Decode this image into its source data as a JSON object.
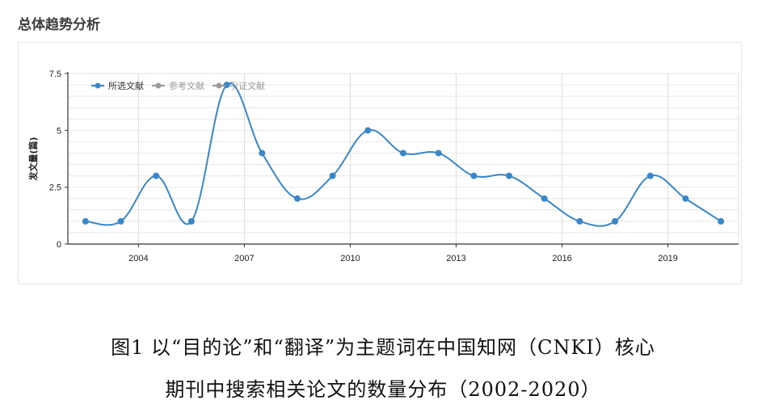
{
  "section_title": "总体趋势分析",
  "chart_data": {
    "type": "line",
    "ylabel": "发文量(篇)",
    "x": [
      2002,
      2003,
      2004,
      2005,
      2006,
      2007,
      2008,
      2009,
      2010,
      2011,
      2012,
      2013,
      2014,
      2015,
      2016,
      2017,
      2018,
      2019,
      2020
    ],
    "x_tick_labels": [
      "2004",
      "2007",
      "2010",
      "2013",
      "2016",
      "2019"
    ],
    "y_tick_labels": [
      "0",
      "2.5",
      "5",
      "7.5"
    ],
    "ylim": [
      0,
      7.5
    ],
    "grid": true,
    "legend_position": "top-left",
    "legend": [
      {
        "label": "所选文献",
        "color": "#3a87c8",
        "active": true
      },
      {
        "label": "参考文献",
        "color": "#9a9a9a",
        "active": false
      },
      {
        "label": "引证文献",
        "color": "#9a9a9a",
        "active": false
      }
    ],
    "series": [
      {
        "name": "所选文献",
        "color": "#3a87c8",
        "values": [
          1,
          1,
          3,
          1,
          7,
          4,
          2,
          3,
          5,
          4,
          4,
          3,
          3,
          2,
          1,
          1,
          3,
          2,
          1
        ]
      }
    ]
  },
  "caption": {
    "line1": "图1 以“目的论”和“翻译”为主题词在中国知网（CNKI）核心",
    "line2": "期刊中搜索相关论文的数量分布（2002-2020）"
  }
}
